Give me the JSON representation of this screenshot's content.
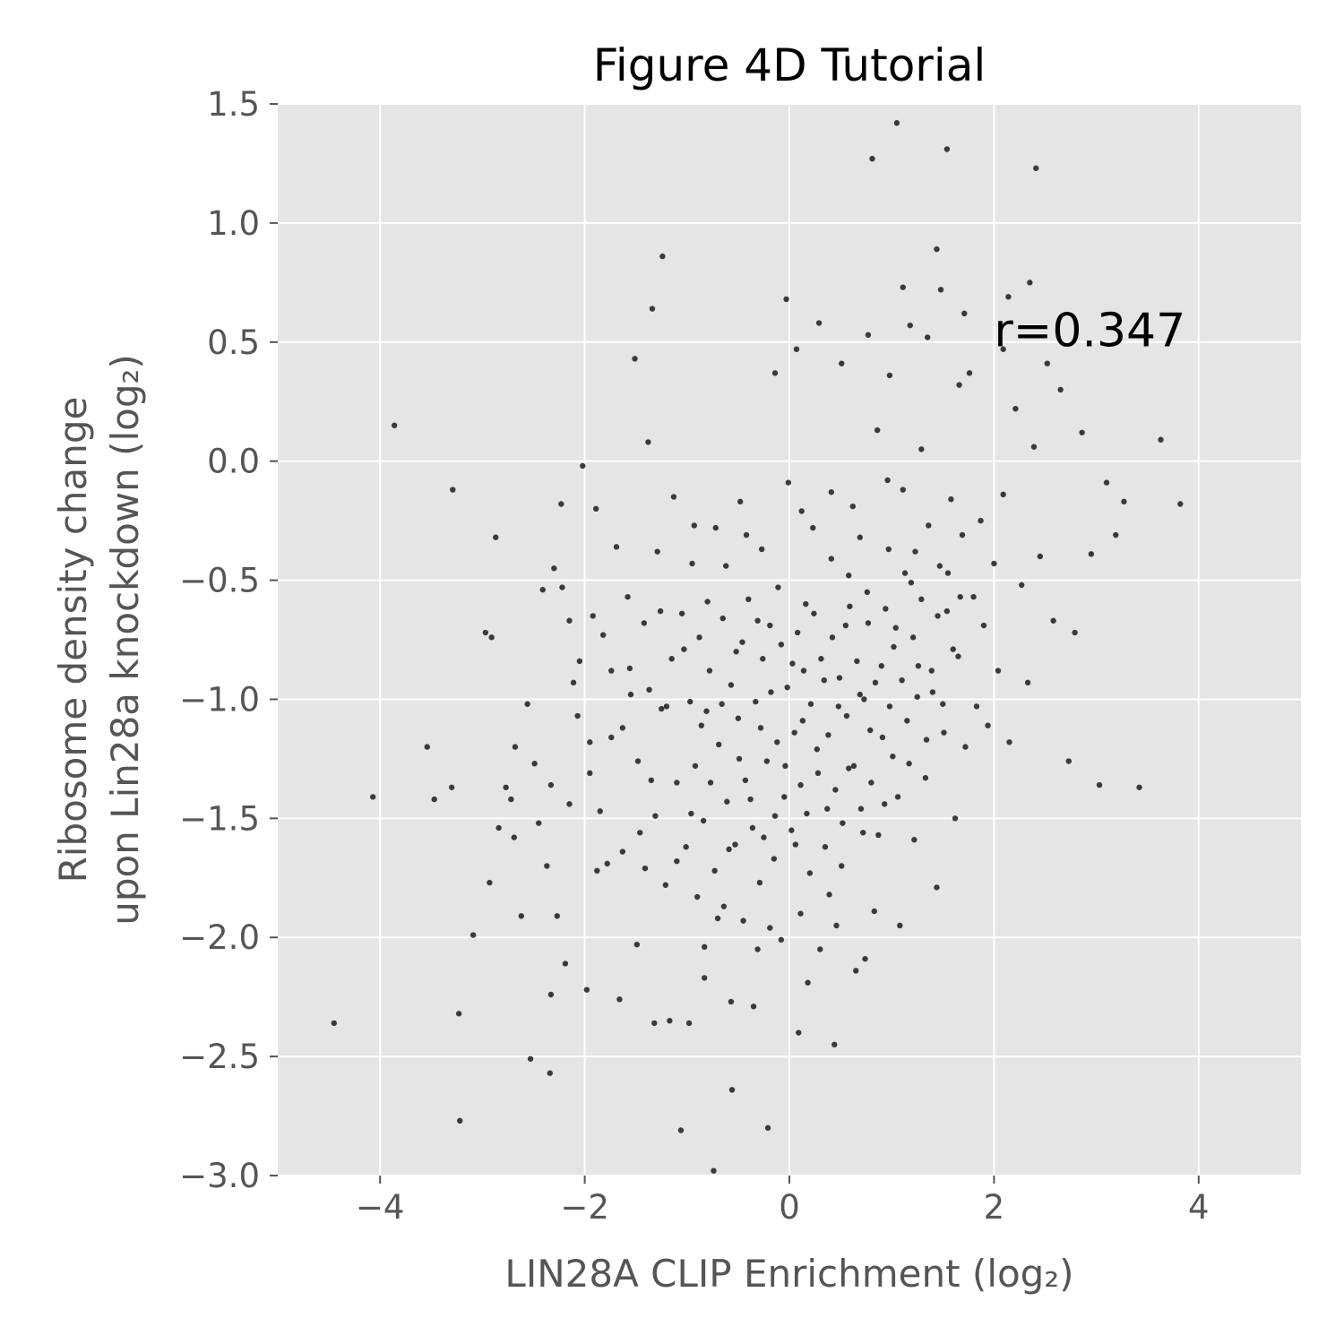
{
  "chart_data": {
    "type": "scatter",
    "title": "Figure 4D Tutorial",
    "xlabel": "LIN28A CLIP Enrichment (log₂)",
    "ylabel_lines": [
      "Ribosome density change",
      "upon Lin28a knockdown (log₂)"
    ],
    "xlim": [
      -5,
      5
    ],
    "ylim": [
      -3.0,
      1.5
    ],
    "xticks": [
      -4,
      -2,
      0,
      2,
      4
    ],
    "xtick_labels": [
      "−4",
      "−2",
      "0",
      "2",
      "4"
    ],
    "yticks": [
      -3.0,
      -2.5,
      -2.0,
      -1.5,
      -1.0,
      -0.5,
      0.0,
      0.5,
      1.0,
      1.5
    ],
    "ytick_labels": [
      "−3.0",
      "−2.5",
      "−2.0",
      "−1.5",
      "−1.0",
      "−0.5",
      "0.0",
      "0.5",
      "1.0",
      "1.5"
    ],
    "grid": true,
    "style": "ggplot",
    "annotation": {
      "text": "r=0.347",
      "x": 2.0,
      "y": 0.55
    },
    "colors": {
      "plot_background": "#e5e5e5",
      "grid": "#ffffff",
      "point": "#000000",
      "tick_text": "#555555",
      "title_text": "#000000"
    },
    "points": [
      [
        -4.45,
        -2.36
      ],
      [
        -4.07,
        -1.41
      ],
      [
        -3.86,
        0.15
      ],
      [
        -3.54,
        -1.2
      ],
      [
        -3.47,
        -1.42
      ],
      [
        -3.29,
        -0.12
      ],
      [
        -3.3,
        -1.37
      ],
      [
        -3.23,
        -2.32
      ],
      [
        -3.22,
        -2.77
      ],
      [
        -3.09,
        -1.99
      ],
      [
        -2.93,
        -1.77
      ],
      [
        -2.91,
        -0.74
      ],
      [
        -2.87,
        -0.32
      ],
      [
        -2.84,
        -1.54
      ],
      [
        -2.77,
        -1.37
      ],
      [
        -2.72,
        -1.42
      ],
      [
        -2.69,
        -1.58
      ],
      [
        -2.68,
        -1.2
      ],
      [
        -2.62,
        -1.91
      ],
      [
        -2.56,
        -1.02
      ],
      [
        -2.53,
        -2.51
      ],
      [
        -2.49,
        -1.27
      ],
      [
        -2.45,
        -1.52
      ],
      [
        -2.41,
        -0.54
      ],
      [
        -2.37,
        -1.7
      ],
      [
        -2.34,
        -2.57
      ],
      [
        -2.33,
        -2.24
      ],
      [
        -2.3,
        -0.45
      ],
      [
        -2.27,
        -1.91
      ],
      [
        -2.23,
        -0.18
      ],
      [
        -2.22,
        -0.53
      ],
      [
        -2.19,
        -2.11
      ],
      [
        -2.15,
        -0.67
      ],
      [
        -2.11,
        -0.93
      ],
      [
        -2.07,
        -1.07
      ],
      [
        -2.02,
        -0.02
      ],
      [
        -1.98,
        -2.22
      ],
      [
        -1.95,
        -1.31
      ],
      [
        -1.92,
        -0.65
      ],
      [
        -1.89,
        -0.2
      ],
      [
        -1.85,
        -1.47
      ],
      [
        -1.82,
        -0.73
      ],
      [
        -1.78,
        -1.69
      ],
      [
        -1.74,
        -0.88
      ],
      [
        -1.69,
        -0.36
      ],
      [
        -1.66,
        -2.26
      ],
      [
        -1.63,
        -1.12
      ],
      [
        -1.58,
        -0.57
      ],
      [
        -1.55,
        -0.98
      ],
      [
        -1.51,
        0.43
      ],
      [
        -1.49,
        -2.03
      ],
      [
        -1.46,
        -1.56
      ],
      [
        -1.42,
        -0.68
      ],
      [
        -1.38,
        0.08
      ],
      [
        -1.35,
        -1.34
      ],
      [
        -1.32,
        -2.36
      ],
      [
        -1.29,
        -0.38
      ],
      [
        -1.26,
        -0.63
      ],
      [
        -1.24,
        0.86
      ],
      [
        -1.2,
        -1.03
      ],
      [
        -1.17,
        -2.35
      ],
      [
        -1.13,
        -0.15
      ],
      [
        -1.1,
        -1.68
      ],
      [
        -1.06,
        -2.81
      ],
      [
        -1.03,
        -0.79
      ],
      [
        -0.98,
        -2.36
      ],
      [
        -0.96,
        -1.48
      ],
      [
        -0.93,
        -0.27
      ],
      [
        -0.9,
        -1.83
      ],
      [
        -0.86,
        -1.11
      ],
      [
        -0.83,
        -2.04
      ],
      [
        -0.8,
        -0.59
      ],
      [
        -0.77,
        -1.35
      ],
      [
        -0.74,
        -2.98
      ],
      [
        -0.7,
        -1.92
      ],
      [
        -0.66,
        -1.02
      ],
      [
        -0.62,
        -0.44
      ],
      [
        -0.59,
        -1.63
      ],
      [
        -0.56,
        -2.64
      ],
      [
        -0.52,
        -0.8
      ],
      [
        -0.49,
        -1.25
      ],
      [
        -0.45,
        -1.93
      ],
      [
        -0.42,
        -0.31
      ],
      [
        -0.38,
        -1.42
      ],
      [
        -0.35,
        -2.29
      ],
      [
        -0.31,
        -0.67
      ],
      [
        -0.28,
        -1.12
      ],
      [
        -0.25,
        -1.58
      ],
      [
        -0.21,
        -2.8
      ],
      [
        -0.18,
        -0.97
      ],
      [
        -0.14,
        -1.49
      ],
      [
        -0.11,
        -0.53
      ],
      [
        -0.08,
        -2.01
      ],
      [
        -0.04,
        -1.28
      ],
      [
        -0.01,
        -0.09
      ],
      [
        0.03,
        -0.85
      ],
      [
        0.06,
        -1.61
      ],
      [
        0.09,
        -2.4
      ],
      [
        0.13,
        -1.09
      ],
      [
        0.16,
        -0.6
      ],
      [
        0.2,
        -1.73
      ],
      [
        0.23,
        -0.28
      ],
      [
        0.27,
        -1.21
      ],
      [
        0.3,
        -2.05
      ],
      [
        0.34,
        -0.92
      ],
      [
        0.37,
        -1.46
      ],
      [
        0.41,
        -0.41
      ],
      [
        0.44,
        -2.45
      ],
      [
        0.48,
        -1.03
      ],
      [
        0.51,
        -1.7
      ],
      [
        0.55,
        -0.69
      ],
      [
        0.58,
        -1.29
      ],
      [
        0.62,
        -0.19
      ],
      [
        0.65,
        -2.14
      ],
      [
        0.69,
        -0.98
      ],
      [
        0.72,
        -1.56
      ],
      [
        0.76,
        -0.55
      ],
      [
        0.79,
        -1.13
      ],
      [
        0.83,
        -1.89
      ],
      [
        0.86,
        0.13
      ],
      [
        0.9,
        -0.86
      ],
      [
        0.93,
        -1.44
      ],
      [
        0.97,
        -0.37
      ],
      [
        1.01,
        -1.24
      ],
      [
        1.04,
        -0.7
      ],
      [
        1.08,
        -1.95
      ],
      [
        1.11,
        -0.12
      ],
      [
        1.15,
        -1.09
      ],
      [
        1.19,
        -0.51
      ],
      [
        1.22,
        -1.59
      ],
      [
        1.26,
        -0.86
      ],
      [
        1.29,
        0.05
      ],
      [
        1.33,
        -1.33
      ],
      [
        1.36,
        -0.27
      ],
      [
        1.4,
        -0.97
      ],
      [
        1.44,
        -1.79
      ],
      [
        1.47,
        -0.44
      ],
      [
        1.51,
        -1.14
      ],
      [
        1.54,
        -0.63
      ],
      [
        1.58,
        -0.16
      ],
      [
        1.62,
        -1.5
      ],
      [
        1.65,
        -0.82
      ],
      [
        1.69,
        -0.31
      ],
      [
        1.72,
        -1.2
      ],
      [
        1.76,
        0.37
      ],
      [
        1.8,
        -0.57
      ],
      [
        1.83,
        -1.03
      ],
      [
        1.87,
        -0.25
      ],
      [
        1.9,
        -0.69
      ],
      [
        1.94,
        -1.11
      ],
      [
        2.0,
        -0.43
      ],
      [
        2.04,
        -0.88
      ],
      [
        2.09,
        -0.14
      ],
      [
        2.15,
        -1.18
      ],
      [
        2.21,
        0.22
      ],
      [
        2.27,
        -0.52
      ],
      [
        2.33,
        -0.93
      ],
      [
        2.39,
        0.06
      ],
      [
        2.45,
        -0.4
      ],
      [
        2.52,
        0.41
      ],
      [
        2.58,
        -0.67
      ],
      [
        2.65,
        0.3
      ],
      [
        2.73,
        -1.26
      ],
      [
        2.79,
        -0.72
      ],
      [
        2.86,
        0.12
      ],
      [
        2.95,
        -0.39
      ],
      [
        3.03,
        -1.36
      ],
      [
        3.1,
        -0.09
      ],
      [
        3.19,
        -0.31
      ],
      [
        3.27,
        -0.17
      ],
      [
        3.42,
        -1.37
      ],
      [
        3.63,
        0.09
      ],
      [
        3.82,
        -0.18
      ],
      [
        1.05,
        1.42
      ],
      [
        1.54,
        1.31
      ],
      [
        0.81,
        1.27
      ],
      [
        2.41,
        1.23
      ],
      [
        1.44,
        0.89
      ],
      [
        -1.34,
        0.64
      ],
      [
        1.11,
        0.73
      ],
      [
        2.35,
        0.75
      ],
      [
        2.14,
        0.69
      ],
      [
        -0.03,
        0.68
      ],
      [
        1.48,
        0.72
      ],
      [
        0.29,
        0.58
      ],
      [
        1.71,
        0.62
      ],
      [
        1.18,
        0.57
      ],
      [
        0.77,
        0.53
      ],
      [
        0.07,
        0.47
      ],
      [
        -0.14,
        0.37
      ],
      [
        1.35,
        0.52
      ],
      [
        0.51,
        0.41
      ],
      [
        2.09,
        0.47
      ],
      [
        0.98,
        0.36
      ],
      [
        1.66,
        0.32
      ],
      [
        -2.97,
        -0.72
      ],
      [
        -2.33,
        -1.36
      ],
      [
        -2.15,
        -1.44
      ],
      [
        -2.05,
        -0.84
      ],
      [
        -1.95,
        -1.18
      ],
      [
        -1.88,
        -1.72
      ],
      [
        -1.74,
        -1.16
      ],
      [
        -1.63,
        -1.64
      ],
      [
        -1.56,
        -0.87
      ],
      [
        -1.48,
        -1.26
      ],
      [
        -1.41,
        -1.71
      ],
      [
        -1.37,
        -0.96
      ],
      [
        -1.31,
        -1.49
      ],
      [
        -1.25,
        -1.04
      ],
      [
        -1.21,
        -1.78
      ],
      [
        -1.15,
        -0.83
      ],
      [
        -1.1,
        -1.35
      ],
      [
        -1.05,
        -0.64
      ],
      [
        -1.01,
        -1.62
      ],
      [
        -0.97,
        -1.01
      ],
      [
        -0.92,
        -1.28
      ],
      [
        -0.88,
        -0.74
      ],
      [
        -0.84,
        -1.51
      ],
      [
        -0.81,
        -1.05
      ],
      [
        -0.78,
        -0.88
      ],
      [
        -0.73,
        -1.72
      ],
      [
        -0.69,
        -1.19
      ],
      [
        -0.65,
        -0.66
      ],
      [
        -0.61,
        -1.43
      ],
      [
        -0.57,
        -0.94
      ],
      [
        -0.53,
        -1.61
      ],
      [
        -0.5,
        -1.08
      ],
      [
        -0.46,
        -0.76
      ],
      [
        -0.43,
        -1.34
      ],
      [
        -0.4,
        -0.58
      ],
      [
        -0.36,
        -1.54
      ],
      [
        -0.33,
        -1.01
      ],
      [
        -0.29,
        -1.77
      ],
      [
        -0.26,
        -0.83
      ],
      [
        -0.22,
        -1.26
      ],
      [
        -0.19,
        -0.69
      ],
      [
        -0.15,
        -1.67
      ],
      [
        -0.12,
        -1.18
      ],
      [
        -0.08,
        -0.77
      ],
      [
        -0.05,
        -1.41
      ],
      [
        -0.02,
        -0.95
      ],
      [
        0.02,
        -1.55
      ],
      [
        0.05,
        -1.14
      ],
      [
        0.08,
        -0.72
      ],
      [
        0.11,
        -1.36
      ],
      [
        0.14,
        -0.88
      ],
      [
        0.17,
        -1.48
      ],
      [
        0.21,
        -1.02
      ],
      [
        0.24,
        -0.64
      ],
      [
        0.28,
        -1.31
      ],
      [
        0.31,
        -0.83
      ],
      [
        0.35,
        -1.62
      ],
      [
        0.38,
        -1.15
      ],
      [
        0.42,
        -0.74
      ],
      [
        0.45,
        -1.38
      ],
      [
        0.49,
        -0.91
      ],
      [
        0.52,
        -1.52
      ],
      [
        0.56,
        -1.07
      ],
      [
        0.59,
        -0.61
      ],
      [
        0.63,
        -1.28
      ],
      [
        0.66,
        -0.84
      ],
      [
        0.7,
        -1.46
      ],
      [
        0.73,
        -1.0
      ],
      [
        0.77,
        -0.68
      ],
      [
        0.8,
        -1.35
      ],
      [
        0.84,
        -0.93
      ],
      [
        0.87,
        -1.57
      ],
      [
        0.91,
        -1.16
      ],
      [
        0.94,
        -0.62
      ],
      [
        0.98,
        -1.03
      ],
      [
        1.02,
        -0.78
      ],
      [
        1.06,
        -1.41
      ],
      [
        1.1,
        -0.92
      ],
      [
        1.13,
        -0.47
      ],
      [
        1.17,
        -1.27
      ],
      [
        1.21,
        -0.74
      ],
      [
        1.25,
        -0.99
      ],
      [
        1.29,
        -0.58
      ],
      [
        1.34,
        -1.17
      ],
      [
        1.39,
        -0.88
      ],
      [
        1.45,
        -0.65
      ],
      [
        1.5,
        -1.02
      ],
      [
        1.55,
        -0.47
      ],
      [
        1.6,
        -0.79
      ],
      [
        1.67,
        -0.57
      ],
      [
        -0.95,
        -0.43
      ],
      [
        -0.72,
        -0.28
      ],
      [
        -0.48,
        -0.17
      ],
      [
        -0.27,
        -0.37
      ],
      [
        0.12,
        -0.21
      ],
      [
        0.41,
        -0.13
      ],
      [
        0.69,
        -0.32
      ],
      [
        0.96,
        -0.08
      ],
      [
        1.23,
        -0.38
      ],
      [
        0.58,
        -0.48
      ],
      [
        -0.83,
        -2.17
      ],
      [
        -0.57,
        -2.27
      ],
      [
        -0.31,
        -2.05
      ],
      [
        0.18,
        -2.19
      ],
      [
        0.46,
        -1.95
      ],
      [
        0.74,
        -2.09
      ],
      [
        -0.64,
        -1.87
      ],
      [
        0.11,
        -1.9
      ],
      [
        0.39,
        -1.82
      ],
      [
        -0.19,
        -1.96
      ]
    ]
  }
}
